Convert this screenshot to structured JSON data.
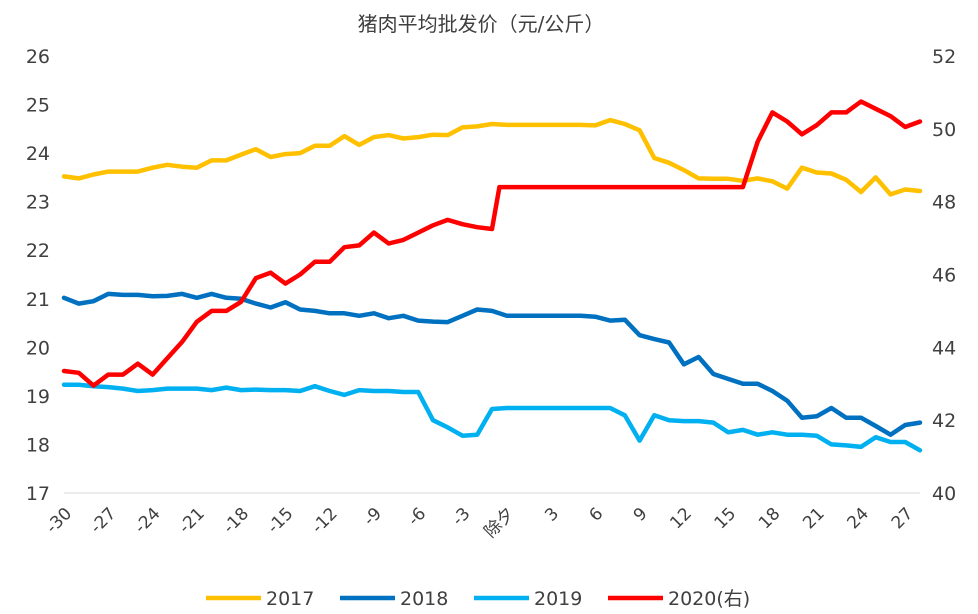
{
  "chart_data": {
    "type": "line",
    "title": "猪肉平均批发价（元/公斤）",
    "x_tick_labels": [
      "-30",
      "-27",
      "-24",
      "-21",
      "-18",
      "-15",
      "-12",
      "-9",
      "-6",
      "-3",
      "除夕",
      "3",
      "6",
      "9",
      "12",
      "15",
      "18",
      "21",
      "24",
      "27"
    ],
    "x_tick_positions": [
      -30,
      -27,
      -24,
      -21,
      -18,
      -15,
      -12,
      -9,
      -6,
      -3,
      0,
      3,
      6,
      9,
      12,
      15,
      18,
      21,
      24,
      27
    ],
    "xlim": [
      -30,
      28
    ],
    "y_left": {
      "ylim": [
        17,
        26
      ],
      "ticks": [
        "17",
        "18",
        "19",
        "20",
        "21",
        "22",
        "23",
        "24",
        "25",
        "26"
      ]
    },
    "y_right": {
      "ylim": [
        40,
        52
      ],
      "ticks": [
        "40",
        "42",
        "44",
        "46",
        "48",
        "50",
        "52"
      ]
    },
    "series": [
      {
        "name": "2017",
        "color": "#FFC000",
        "axis": "left",
        "x": [
          -30,
          -29,
          -28,
          -27,
          -26,
          -25,
          -24,
          -23,
          -22,
          -21,
          -20,
          -19,
          -18,
          -17,
          -16,
          -15,
          -14,
          -13,
          -12,
          -11,
          -10,
          -9,
          -8,
          -7,
          -6,
          -5,
          -4,
          -3,
          -2,
          -1,
          0,
          1,
          2,
          3,
          4,
          5,
          6,
          7,
          8,
          9,
          10,
          11,
          12,
          13,
          14,
          15,
          16,
          17,
          18,
          19,
          20,
          21,
          22,
          23,
          24,
          25,
          26,
          27,
          28
        ],
        "values": [
          23.52,
          23.48,
          23.56,
          23.62,
          23.62,
          23.62,
          23.7,
          23.76,
          23.72,
          23.7,
          23.85,
          23.85,
          23.97,
          24.08,
          23.92,
          23.98,
          24.0,
          24.15,
          24.15,
          24.35,
          24.17,
          24.33,
          24.37,
          24.3,
          24.33,
          24.38,
          24.37,
          24.53,
          24.55,
          24.6,
          24.58,
          24.58,
          24.58,
          24.58,
          24.58,
          24.58,
          24.57,
          24.68,
          24.6,
          24.47,
          23.9,
          23.8,
          23.65,
          23.48,
          23.47,
          23.47,
          23.43,
          23.48,
          23.42,
          23.27,
          23.7,
          23.6,
          23.58,
          23.45,
          23.2,
          23.5,
          23.15,
          23.25,
          23.22
        ]
      },
      {
        "name": "2018",
        "color": "#0070C0",
        "axis": "left",
        "x": [
          -30,
          -29,
          -28,
          -27,
          -26,
          -25,
          -24,
          -23,
          -22,
          -21,
          -20,
          -19,
          -18,
          -17,
          -16,
          -15,
          -14,
          -13,
          -12,
          -11,
          -10,
          -9,
          -8,
          -7,
          -6,
          -5,
          -4,
          -3,
          -2,
          -1,
          0,
          1,
          2,
          3,
          4,
          5,
          6,
          7,
          8,
          9,
          10,
          11,
          12,
          13,
          14,
          15,
          16,
          17,
          18,
          19,
          20,
          21,
          22,
          23,
          24,
          25,
          26,
          27,
          28
        ],
        "values": [
          21.02,
          20.9,
          20.95,
          21.1,
          21.08,
          21.08,
          21.05,
          21.06,
          21.1,
          21.02,
          21.1,
          21.02,
          21.0,
          20.9,
          20.82,
          20.93,
          20.78,
          20.75,
          20.7,
          20.7,
          20.65,
          20.7,
          20.6,
          20.65,
          20.55,
          20.53,
          20.52,
          20.65,
          20.78,
          20.75,
          20.65,
          20.65,
          20.65,
          20.65,
          20.65,
          20.65,
          20.63,
          20.55,
          20.57,
          20.25,
          20.17,
          20.1,
          19.65,
          19.8,
          19.45,
          19.35,
          19.25,
          19.25,
          19.1,
          18.9,
          18.55,
          18.58,
          18.75,
          18.55,
          18.55,
          18.38,
          18.2,
          18.4,
          18.45
        ]
      },
      {
        "name": "2019",
        "color": "#00B0F0",
        "axis": "left",
        "x": [
          -30,
          -29,
          -28,
          -27,
          -26,
          -25,
          -24,
          -23,
          -22,
          -21,
          -20,
          -19,
          -18,
          -17,
          -16,
          -15,
          -14,
          -13,
          -12,
          -11,
          -10,
          -9,
          -8,
          -7,
          -6,
          -5,
          -4,
          -3,
          -2,
          -1,
          0,
          1,
          2,
          3,
          4,
          5,
          6,
          7,
          8,
          9,
          10,
          11,
          12,
          13,
          14,
          15,
          16,
          17,
          18,
          19,
          20,
          21,
          22,
          23,
          24,
          25,
          26,
          27,
          28
        ],
        "values": [
          19.23,
          19.23,
          19.2,
          19.18,
          19.15,
          19.1,
          19.12,
          19.15,
          19.15,
          19.15,
          19.12,
          19.17,
          19.12,
          19.13,
          19.12,
          19.12,
          19.1,
          19.2,
          19.1,
          19.02,
          19.12,
          19.1,
          19.1,
          19.08,
          19.08,
          18.5,
          18.35,
          18.18,
          18.2,
          18.73,
          18.75,
          18.75,
          18.75,
          18.75,
          18.75,
          18.75,
          18.75,
          18.75,
          18.6,
          18.08,
          18.6,
          18.5,
          18.48,
          18.48,
          18.45,
          18.25,
          18.3,
          18.2,
          18.25,
          18.2,
          18.2,
          18.18,
          18.0,
          17.98,
          17.95,
          18.15,
          18.05,
          18.05,
          17.88
        ]
      },
      {
        "name": "2020(右)",
        "color": "#FF0000",
        "axis": "right",
        "x": [
          -30,
          -29,
          -28,
          -27,
          -26,
          -25,
          -24,
          -23,
          -22,
          -21,
          -20,
          -19,
          -18,
          -17,
          -16,
          -15,
          -14,
          -13,
          -12,
          -11,
          -10,
          -9,
          -8,
          -7,
          -6,
          -5,
          -4,
          -3,
          -2,
          -1,
          -0.5,
          0,
          1,
          2,
          3,
          4,
          5,
          6,
          7,
          8,
          9,
          10,
          11,
          12,
          13,
          14,
          15,
          16,
          17,
          18,
          19,
          20,
          21,
          22,
          23,
          24,
          25,
          26,
          27,
          28
        ],
        "values": [
          43.35,
          43.3,
          42.95,
          43.25,
          43.25,
          43.55,
          43.25,
          43.7,
          44.15,
          44.7,
          45.0,
          45.0,
          45.25,
          45.9,
          46.05,
          45.75,
          46.0,
          46.35,
          46.35,
          46.75,
          46.8,
          47.15,
          46.85,
          46.95,
          47.15,
          47.35,
          47.5,
          47.38,
          47.3,
          47.25,
          48.4,
          48.4,
          48.4,
          48.4,
          48.4,
          48.4,
          48.4,
          48.4,
          48.4,
          48.4,
          48.4,
          48.4,
          48.4,
          48.4,
          48.4,
          48.4,
          48.4,
          48.4,
          49.65,
          50.45,
          50.2,
          49.85,
          50.1,
          50.45,
          50.45,
          50.75,
          50.55,
          50.35,
          50.05,
          50.2
        ]
      }
    ]
  }
}
